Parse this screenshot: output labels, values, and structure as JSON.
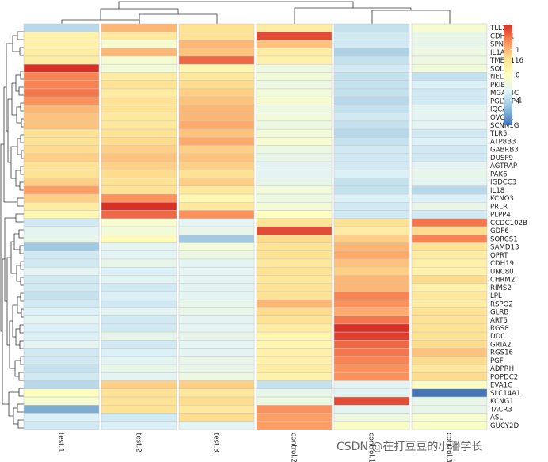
{
  "chart_data": {
    "type": "heatmap",
    "title": "",
    "columns": [
      "test.1",
      "test.2",
      "test.3",
      "control.2",
      "control.1",
      "control.3"
    ],
    "rows": [
      "TLL1",
      "CDHR1",
      "SPN",
      "IL1A",
      "TMEM116",
      "SOLD1",
      "NELL2",
      "PKIB",
      "MGAT4C",
      "PGLYRP4",
      "IQCA1",
      "OVOL1",
      "SCNN1G",
      "TLR5",
      "ATP8B3",
      "GABRB3",
      "DUSP9",
      "AGTRAP",
      "PAK6",
      "IGDCC3",
      "IL18",
      "KCNQ3",
      "PRLR",
      "PLPP4",
      "CCDC102B",
      "GDF6",
      "SORCS1",
      "SAMD13",
      "QPRT",
      "CDH19",
      "UNC80",
      "CHRM2",
      "RIMS2",
      "LPL",
      "RSPO2",
      "GLRB",
      "ART5",
      "RGS8",
      "DDC",
      "GRIA2",
      "RGS16",
      "PGF",
      "ADPRH",
      "POPDC2",
      "EVA1C",
      "SLC14A1",
      "KCNG1",
      "TACR3",
      "ASL",
      "GUCY2D"
    ],
    "values": [
      [
        -1.0,
        1.0,
        0.6,
        0.4,
        -0.9,
        -0.2
      ],
      [
        0.3,
        0.5,
        0.6,
        1.8,
        -0.8,
        -0.5
      ],
      [
        0.3,
        -0.2,
        1.0,
        0.9,
        -0.8,
        -0.5
      ],
      [
        0.4,
        1.0,
        0.9,
        0.4,
        -1.1,
        -0.4
      ],
      [
        0.4,
        -0.2,
        1.6,
        0.3,
        -0.9,
        -0.4
      ],
      [
        2.0,
        -0.3,
        0.2,
        -0.4,
        -0.8,
        -0.3
      ],
      [
        1.4,
        0.4,
        0.5,
        -0.3,
        -0.9,
        -0.9
      ],
      [
        1.4,
        0.6,
        0.7,
        -0.4,
        -0.9,
        -0.7
      ],
      [
        1.5,
        0.4,
        0.8,
        -0.3,
        -0.9,
        -0.8
      ],
      [
        1.3,
        0.6,
        0.9,
        -0.2,
        -1.0,
        -0.8
      ],
      [
        1.0,
        0.6,
        1.0,
        -0.4,
        -0.9,
        -0.6
      ],
      [
        0.9,
        0.5,
        1.0,
        -0.3,
        -0.8,
        -0.6
      ],
      [
        0.9,
        0.5,
        1.1,
        -0.4,
        -0.9,
        -0.6
      ],
      [
        0.6,
        0.6,
        0.9,
        -0.3,
        -1.0,
        -0.8
      ],
      [
        0.6,
        0.7,
        1.1,
        -0.2,
        -0.9,
        -0.7
      ],
      [
        0.7,
        0.8,
        0.8,
        -0.4,
        -0.8,
        -0.8
      ],
      [
        0.8,
        0.9,
        0.9,
        -0.5,
        -0.8,
        -0.8
      ],
      [
        0.6,
        0.8,
        0.8,
        -0.6,
        -0.8,
        -0.6
      ],
      [
        0.6,
        0.7,
        0.6,
        -0.6,
        -0.7,
        -0.5
      ],
      [
        0.8,
        0.6,
        0.8,
        -0.5,
        -0.9,
        -0.6
      ],
      [
        1.2,
        0.6,
        0.5,
        -0.3,
        -0.9,
        -1.0
      ],
      [
        0.8,
        1.3,
        0.2,
        -0.4,
        -0.7,
        -0.7
      ],
      [
        0.4,
        2.0,
        0.5,
        -0.3,
        -0.8,
        -0.5
      ],
      [
        0.2,
        1.6,
        1.3,
        0.0,
        -0.8,
        -0.8
      ],
      [
        -0.8,
        -0.2,
        -0.6,
        0.6,
        0.6,
        1.5
      ],
      [
        -0.6,
        -0.3,
        -0.5,
        1.8,
        0.4,
        0.7
      ],
      [
        -0.5,
        0.1,
        -1.2,
        0.7,
        0.8,
        1.4
      ],
      [
        -1.2,
        -0.6,
        -0.3,
        0.6,
        1.0,
        0.6
      ],
      [
        -0.8,
        -0.6,
        -0.4,
        0.6,
        1.1,
        0.4
      ],
      [
        -0.8,
        -0.5,
        -0.6,
        0.5,
        0.9,
        0.3
      ],
      [
        -0.6,
        -0.7,
        -0.6,
        0.6,
        0.8,
        0.3
      ],
      [
        -0.8,
        -0.6,
        -0.6,
        0.5,
        1.0,
        0.7
      ],
      [
        -0.8,
        -0.8,
        -0.6,
        0.6,
        1.0,
        0.3
      ],
      [
        -0.9,
        -0.7,
        -0.6,
        0.6,
        1.4,
        0.5
      ],
      [
        -0.8,
        -0.8,
        -0.5,
        1.0,
        1.3,
        0.4
      ],
      [
        -0.7,
        -0.6,
        -0.5,
        0.7,
        1.1,
        0.6
      ],
      [
        -0.6,
        -0.8,
        -0.6,
        0.6,
        1.5,
        0.6
      ],
      [
        -0.7,
        -0.8,
        -0.6,
        0.4,
        2.0,
        0.6
      ],
      [
        -0.7,
        -0.5,
        -0.5,
        0.2,
        1.9,
        0.6
      ],
      [
        -0.6,
        -0.8,
        -0.6,
        0.2,
        1.6,
        0.7
      ],
      [
        -0.8,
        -0.7,
        -0.6,
        0.3,
        1.5,
        0.9
      ],
      [
        -0.8,
        -0.6,
        -0.5,
        0.3,
        1.4,
        0.7
      ],
      [
        -0.9,
        -0.5,
        -0.5,
        0.4,
        1.3,
        0.5
      ],
      [
        -0.8,
        -0.6,
        -0.4,
        0.3,
        1.3,
        0.7
      ],
      [
        -1.0,
        0.8,
        0.8,
        -0.9,
        -0.6,
        -0.1
      ],
      [
        0.0,
        0.6,
        0.5,
        -0.5,
        -0.6,
        -2.0
      ],
      [
        -0.2,
        0.6,
        0.7,
        -0.4,
        1.8,
        -0.5
      ],
      [
        -1.5,
        0.6,
        0.5,
        1.3,
        -0.6,
        -0.5
      ],
      [
        -0.7,
        -0.8,
        0.7,
        1.2,
        -0.4,
        -0.2
      ],
      [
        -0.8,
        -0.7,
        -0.6,
        1.2,
        -0.1,
        -0.1
      ]
    ],
    "color_scale": {
      "min": -2,
      "max": 2,
      "colors": [
        "#4575b4",
        "#91bfdb",
        "#e0f3f8",
        "#ffffbf",
        "#fee090",
        "#fc8d59",
        "#d73027"
      ]
    },
    "legend": {
      "ticks": [
        1,
        0,
        -1
      ],
      "tick_labels": [
        "1",
        "0",
        "-1"
      ],
      "placement": "top-right"
    },
    "column_dendrogram": true,
    "row_dendrogram": true
  },
  "watermark": "CSDN @在打豆豆的小潘学长"
}
